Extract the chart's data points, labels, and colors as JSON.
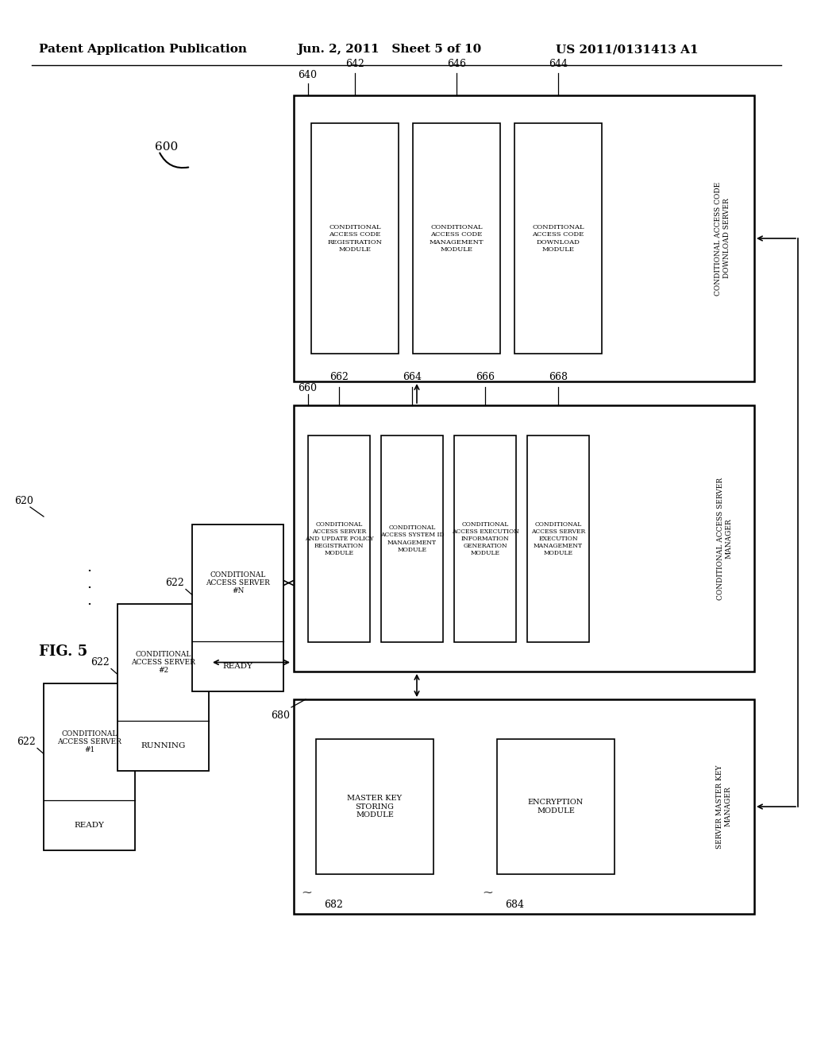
{
  "header_left": "Patent Application Publication",
  "header_mid": "Jun. 2, 2011   Sheet 5 of 10",
  "header_right": "US 2011/0131413 A1",
  "fig_label": "FIG. 5",
  "main_label": "600",
  "bg_color": "#ffffff"
}
